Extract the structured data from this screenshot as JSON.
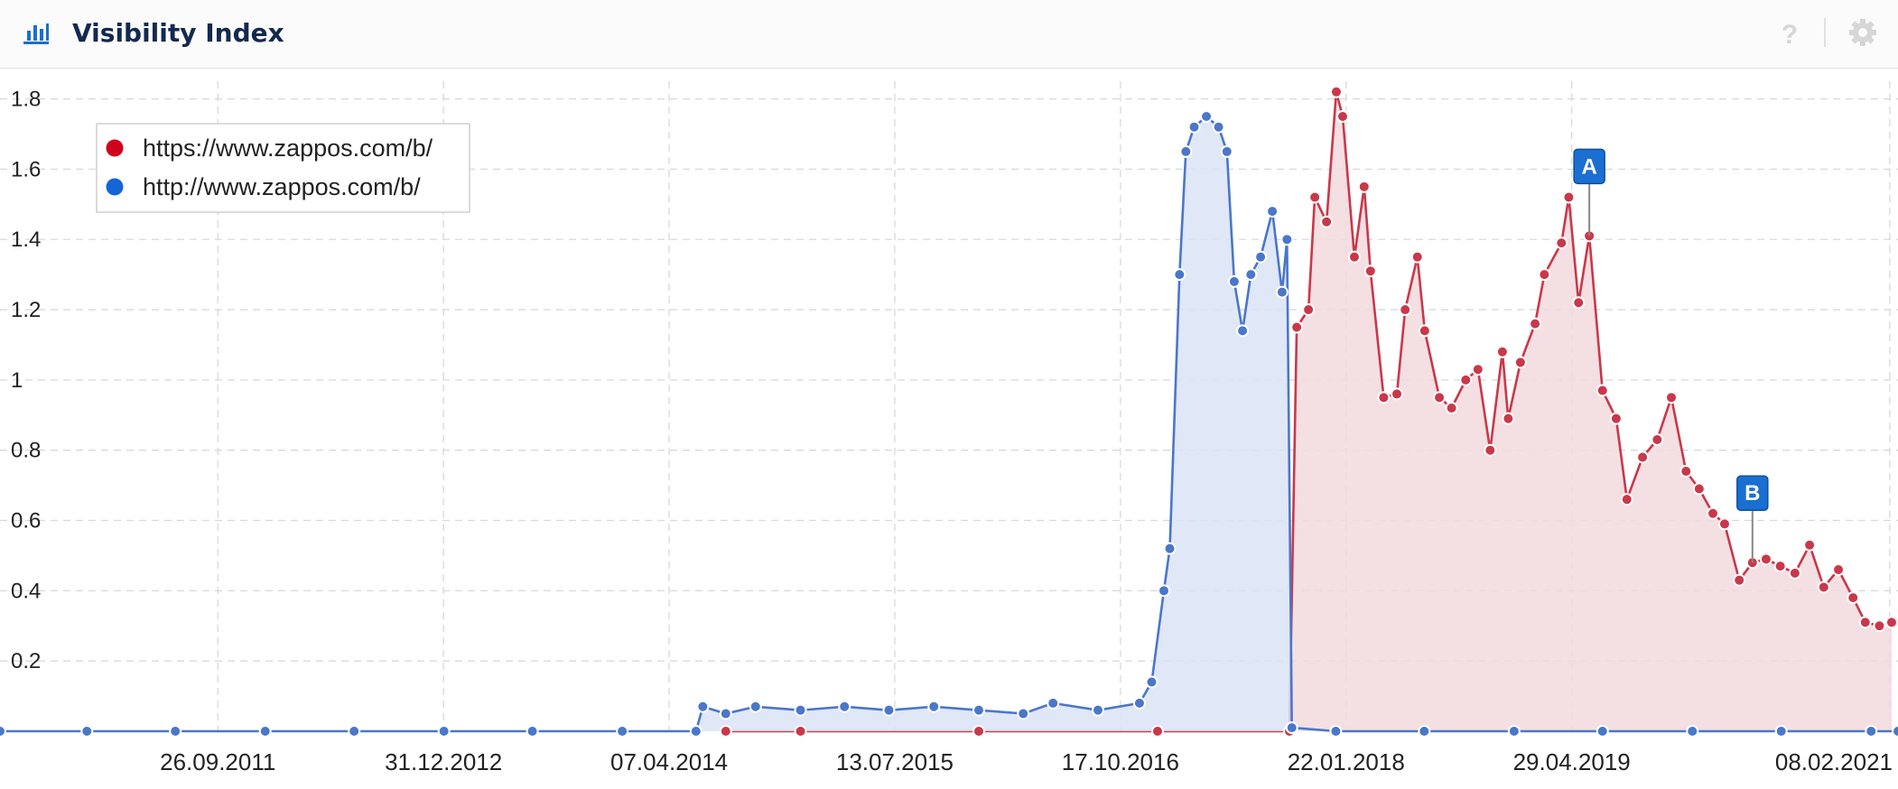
{
  "header": {
    "title": "Visibility Index"
  },
  "chart_data": {
    "type": "line",
    "title": "Visibility Index",
    "legend": "top-left",
    "grid": true,
    "xlim": [
      "07.07.2010",
      "25.02.2021"
    ],
    "xticks": [
      "26.09.2011",
      "31.12.2012",
      "07.04.2014",
      "13.07.2015",
      "17.10.2016",
      "22.01.2018",
      "29.04.2019",
      "08.02.2021"
    ],
    "ylim": [
      0,
      1.84
    ],
    "yticks": [
      0.2,
      0.4,
      0.6,
      0.8,
      1,
      1.2,
      1.4,
      1.6,
      1.8
    ],
    "series": [
      {
        "name": "https://www.zappos.com/b/",
        "color": "#c9384a",
        "legend_color": "#d0021b",
        "fill": "#f2d9dd",
        "x": [
          "01.08.2014",
          "01.01.2015",
          "01.01.2016",
          "01.01.2017",
          "28.09.2017",
          "13.10.2017",
          "06.11.2017",
          "19.11.2017",
          "13.12.2017",
          "02.01.2018",
          "15.01.2018",
          "08.02.2018",
          "28.02.2018",
          "13.03.2018",
          "09.04.2018",
          "06.05.2018",
          "23.05.2018",
          "17.06.2018",
          "02.07.2018",
          "01.08.2018",
          "26.08.2018",
          "24.09.2018",
          "19.10.2018",
          "13.11.2018",
          "08.12.2018",
          "20.12.2018",
          "14.01.2019",
          "13.02.2019",
          "04.03.2019",
          "08.04.2019",
          "23.04.2019",
          "13.05.2019",
          "04.06.2019",
          "01.07.2019",
          "29.07.2019",
          "20.08.2019",
          "21.09.2019",
          "21.10.2019",
          "19.11.2019",
          "19.12.2019",
          "15.01.2020",
          "12.02.2020",
          "07.03.2020",
          "06.04.2020",
          "03.05.2020",
          "31.05.2020",
          "29.06.2020",
          "29.07.2020",
          "28.08.2020",
          "26.09.2020",
          "26.10.2020",
          "25.11.2020",
          "20.12.2020",
          "18.01.2021",
          "12.02.2021"
        ],
        "values": [
          0,
          0,
          0,
          0,
          0,
          1.15,
          1.2,
          1.52,
          1.45,
          1.82,
          1.75,
          1.35,
          1.55,
          1.31,
          0.95,
          0.96,
          1.2,
          1.35,
          1.14,
          0.95,
          0.92,
          1.0,
          1.03,
          0.8,
          1.08,
          0.89,
          1.05,
          1.16,
          1.3,
          1.39,
          1.52,
          1.22,
          1.41,
          0.97,
          0.89,
          0.66,
          0.78,
          0.83,
          0.95,
          0.74,
          0.69,
          0.62,
          0.59,
          0.43,
          0.48,
          0.49,
          0.47,
          0.45,
          0.53,
          0.41,
          0.46,
          0.38,
          0.31,
          0.3,
          0.31
        ]
      },
      {
        "name": "http://www.zappos.com/b/",
        "color": "#4a77c9",
        "legend_color": "#1565d8",
        "fill": "#dbe3f4",
        "x": [
          "07.07.2010",
          "01.01.2011",
          "01.07.2011",
          "01.01.2012",
          "01.07.2012",
          "01.01.2013",
          "01.07.2013",
          "01.01.2014",
          "01.06.2014",
          "15.06.2014",
          "01.08.2014",
          "01.10.2014",
          "01.01.2015",
          "01.04.2015",
          "01.07.2015",
          "01.10.2015",
          "01.01.2016",
          "01.04.2016",
          "01.06.2016",
          "01.09.2016",
          "25.11.2016",
          "20.12.2016",
          "14.01.2017",
          "26.01.2017",
          "15.02.2017",
          "28.02.2017",
          "17.03.2017",
          "11.04.2017",
          "06.05.2017",
          "23.05.2017",
          "07.06.2017",
          "24.06.2017",
          "11.07.2017",
          "31.07.2017",
          "24.08.2017",
          "13.09.2017",
          "23.09.2017",
          "03.10.2017",
          "01.01.2018",
          "01.07.2018",
          "01.01.2019",
          "01.07.2019",
          "01.01.2020",
          "01.07.2020",
          "01.01.2021",
          "25.02.2021"
        ],
        "values": [
          0,
          0,
          0,
          0,
          0,
          0,
          0,
          0,
          0,
          0.07,
          0.05,
          0.07,
          0.06,
          0.07,
          0.06,
          0.07,
          0.06,
          0.05,
          0.08,
          0.06,
          0.08,
          0.14,
          0.4,
          0.52,
          1.3,
          1.65,
          1.72,
          1.75,
          1.72,
          1.65,
          1.28,
          1.14,
          1.3,
          1.35,
          1.48,
          1.25,
          1.4,
          0.01,
          0,
          0,
          0,
          0,
          0,
          0,
          0,
          0
        ]
      }
    ],
    "annotations": [
      {
        "label": "A",
        "x": "04.06.2019",
        "y": 1.41
      },
      {
        "label": "B",
        "x": "03.05.2020",
        "y": 0.48
      }
    ]
  }
}
